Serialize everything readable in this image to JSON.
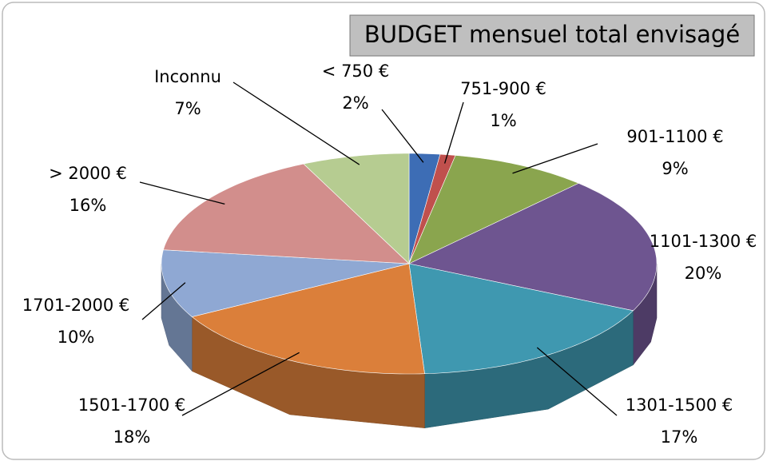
{
  "chart_data": {
    "type": "pie",
    "title": "BUDGET mensuel total envisagé",
    "categories": [
      "< 750 €",
      "751-900 €",
      "901-1100 €",
      "1101-1300 €",
      "1301-1500 €",
      "1501-1700 €",
      "1701-2000 €",
      "> 2000 €",
      "Inconnu"
    ],
    "values": [
      2,
      1,
      9,
      20,
      17,
      18,
      10,
      16,
      7
    ],
    "value_labels": [
      "2%",
      "1%",
      "9%",
      "20%",
      "17%",
      "18%",
      "10%",
      "16%",
      "7%"
    ],
    "colors": [
      "#3d6db5",
      "#c0504d",
      "#8aa54e",
      "#6e5590",
      "#3f98b0",
      "#db7f3a",
      "#8fa8d3",
      "#d28e8c",
      "#b6cc91"
    ]
  }
}
